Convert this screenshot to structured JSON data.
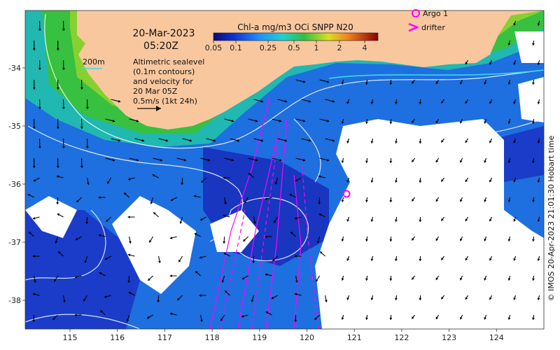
{
  "map": {
    "date": "20-Mar-2023",
    "time": "05:20Z",
    "colorbar_title": "Chl-a mg/m3 OCi SNPP N20",
    "colorbar_ticks": [
      "0.05",
      "0.1",
      "0.25",
      "0.5",
      "1",
      "2",
      "4"
    ],
    "contour_label": "200m",
    "legend_lines": [
      "Altimetric sealevel",
      "(0.1m contours)",
      "and velocity for",
      "20 Mar 05Z",
      "0.5m/s (1kt 24h)"
    ],
    "argo_label": "Argo 1",
    "drifter_label": "drifter",
    "credit": "© IMOS 20-Apr-2023 21:01:30 Hobart time",
    "lon_ticks": [
      "115",
      "116",
      "117",
      "118",
      "119",
      "120",
      "121",
      "122",
      "123",
      "124"
    ],
    "lat_ticks": [
      "-34",
      "-35",
      "-36",
      "-37",
      "-38"
    ],
    "colors": {
      "land": "#f8c79e",
      "argo": "#ff00ff",
      "drifter": "#ff00ff",
      "contour": "#ffffff",
      "isobath": "#3cd8e8"
    }
  }
}
